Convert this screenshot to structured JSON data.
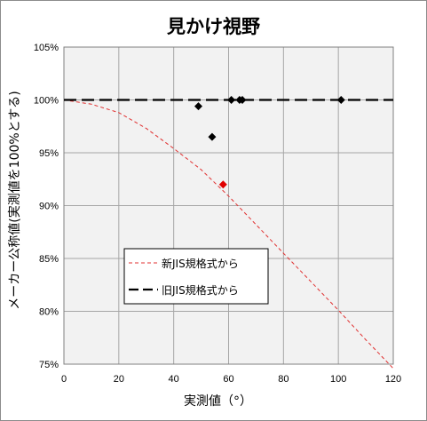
{
  "chart_data": {
    "type": "line",
    "title": "見かけ視野",
    "xlabel": "実測値（°）",
    "ylabel": "メーカー公称値(実測値を100%とする)",
    "xlim": [
      0,
      120
    ],
    "ylim": [
      75,
      105
    ],
    "x_ticks": [
      "0",
      "20",
      "40",
      "60",
      "80",
      "100",
      "120"
    ],
    "y_ticks": [
      "75%",
      "80%",
      "85%",
      "90%",
      "95%",
      "100%",
      "105%"
    ],
    "grid": true,
    "legend_position": "lower-left",
    "series": [
      {
        "name": "新JIS規格式から",
        "kind": "line",
        "style": "dashed",
        "color": "#e03030",
        "x": [
          0,
          10,
          20,
          30,
          40,
          50,
          60,
          70,
          80,
          90,
          100,
          110,
          120
        ],
        "y": [
          100,
          99.6,
          98.8,
          97.3,
          95.4,
          93.4,
          90.9,
          88.2,
          85.5,
          82.8,
          80.1,
          77.3,
          74.6
        ]
      },
      {
        "name": "旧JIS規格式から",
        "kind": "line",
        "style": "long-dash",
        "color": "#000000",
        "x": [
          0,
          120
        ],
        "y": [
          100,
          100
        ]
      },
      {
        "kind": "points",
        "color": "#000000",
        "x": [
          49,
          54,
          61,
          64,
          65,
          101
        ],
        "y": [
          99.4,
          96.5,
          100,
          100,
          100,
          100
        ]
      },
      {
        "kind": "points",
        "color": "#e00000",
        "x": [
          58
        ],
        "y": [
          92
        ]
      }
    ]
  }
}
